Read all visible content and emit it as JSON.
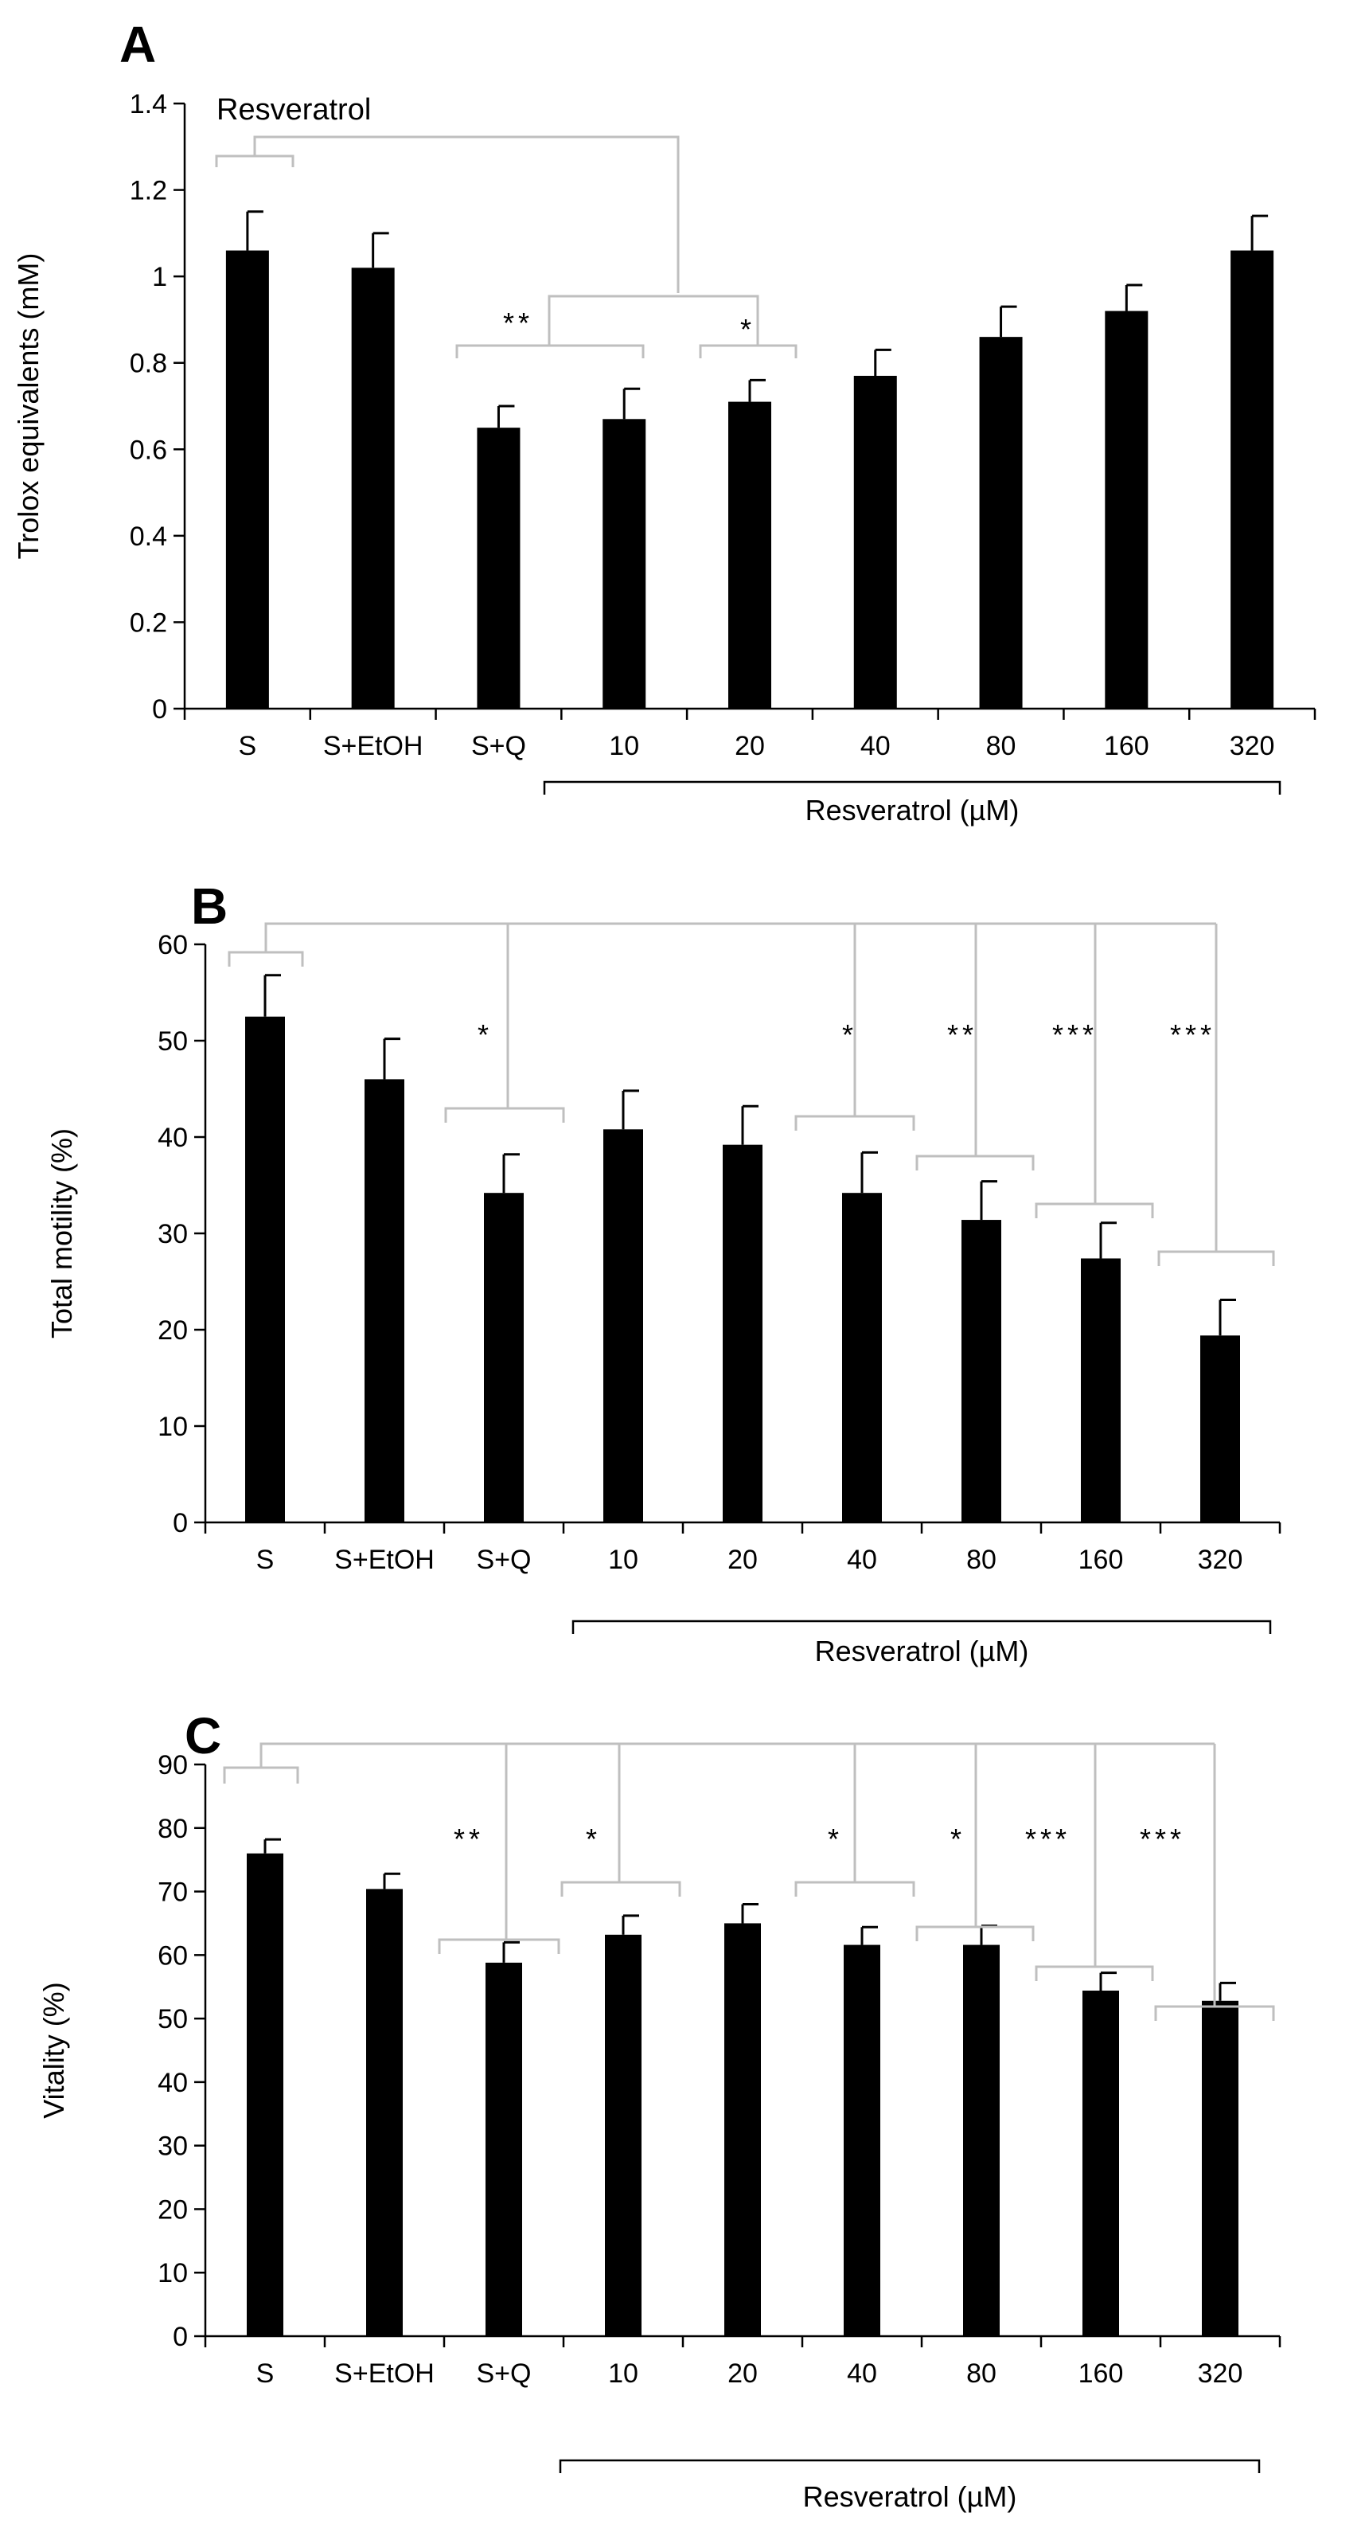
{
  "figure": {
    "domain": "Chart"
  },
  "colors": {
    "bar": "#000000",
    "bracket": "#bfbfbf",
    "axis": "#000000"
  },
  "chart_data": [
    {
      "panel": "A",
      "type": "bar",
      "categories": [
        "S",
        "S+EtOH",
        "S+Q",
        "10",
        "20",
        "40",
        "80",
        "160",
        "320"
      ],
      "values": [
        1.06,
        1.02,
        0.65,
        0.67,
        0.71,
        0.77,
        0.86,
        0.92,
        1.06
      ],
      "errors": [
        0.09,
        0.08,
        0.05,
        0.07,
        0.05,
        0.06,
        0.07,
        0.06,
        0.08
      ],
      "ylabel": "Trolox equivalents (mM)",
      "xlabel": "Resveratrol (µM)",
      "ylim": [
        0,
        1.4
      ],
      "yticks": [
        "0",
        "0.2",
        "0.4",
        "0.6",
        "0.8",
        "1",
        "1.2",
        "1.4"
      ],
      "annotation": "Resveratrol",
      "significance": [
        {
          "label": "**",
          "groups": [
            "S+Q",
            "10"
          ]
        },
        {
          "label": "*",
          "groups": [
            "20"
          ]
        }
      ]
    },
    {
      "panel": "B",
      "type": "bar",
      "categories": [
        "S",
        "S+EtOH",
        "S+Q",
        "10",
        "20",
        "40",
        "80",
        "160",
        "320"
      ],
      "values": [
        52.5,
        46.0,
        34.2,
        40.8,
        39.2,
        34.2,
        31.4,
        27.4,
        19.4
      ],
      "errors": [
        4.3,
        4.2,
        4.0,
        4.0,
        4.0,
        4.2,
        4.0,
        3.7,
        3.7
      ],
      "ylabel": "Total motility (%)",
      "xlabel": "Resveratrol (µM)",
      "ylim": [
        0,
        60
      ],
      "yticks": [
        "0",
        "10",
        "20",
        "30",
        "40",
        "50",
        "60"
      ],
      "significance": [
        {
          "label": "*",
          "groups": [
            "S+Q"
          ]
        },
        {
          "label": "*",
          "groups": [
            "40"
          ]
        },
        {
          "label": "**",
          "groups": [
            "80"
          ]
        },
        {
          "label": "***",
          "groups": [
            "160"
          ]
        },
        {
          "label": "***",
          "groups": [
            "320"
          ]
        }
      ]
    },
    {
      "panel": "C",
      "type": "bar",
      "categories": [
        "S",
        "S+EtOH",
        "S+Q",
        "10",
        "20",
        "40",
        "80",
        "160",
        "320"
      ],
      "values": [
        76.0,
        70.4,
        58.8,
        63.2,
        65.0,
        61.6,
        61.6,
        54.4,
        52.8
      ],
      "errors": [
        2.2,
        2.4,
        3.2,
        3.0,
        3.0,
        2.8,
        3.0,
        2.8,
        2.8
      ],
      "ylabel": "Vitality (%)",
      "xlabel": "Resveratrol (µM)",
      "ylim": [
        0,
        90
      ],
      "yticks": [
        "0",
        "10",
        "20",
        "30",
        "40",
        "50",
        "60",
        "70",
        "80",
        "90"
      ],
      "significance": [
        {
          "label": "**",
          "groups": [
            "S+Q"
          ]
        },
        {
          "label": "*",
          "groups": [
            "10"
          ]
        },
        {
          "label": "*",
          "groups": [
            "40"
          ]
        },
        {
          "label": "*",
          "groups": [
            "80"
          ]
        },
        {
          "label": "***",
          "groups": [
            "160"
          ]
        },
        {
          "label": "***",
          "groups": [
            "320"
          ]
        }
      ]
    }
  ]
}
